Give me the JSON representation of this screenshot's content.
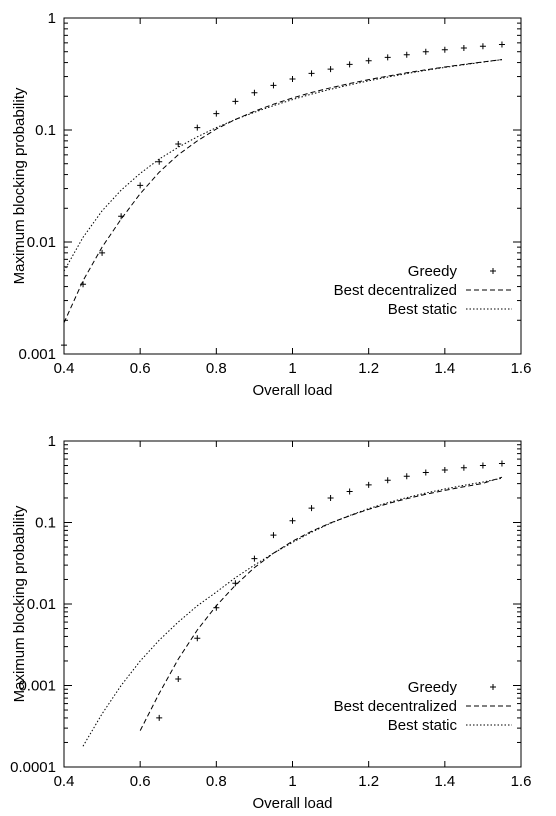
{
  "chart_data": [
    {
      "type": "scatter",
      "xlabel": "Overall load",
      "ylabel": "Maximum blocking probability",
      "xlim": [
        0.4,
        1.6
      ],
      "ylim": [
        0.001,
        1
      ],
      "yscale": "log",
      "grid": false,
      "legend_position": "bottom-right",
      "xticks": [
        "0.4",
        "0.6",
        "0.8",
        "1",
        "1.2",
        "1.4",
        "1.6"
      ],
      "yticks": [
        "0.001",
        "0.01",
        "0.1",
        "1"
      ],
      "series": [
        {
          "name": "Greedy",
          "style": "points",
          "x": [
            0.4,
            0.45,
            0.5,
            0.55,
            0.6,
            0.65,
            0.7,
            0.75,
            0.8,
            0.85,
            0.9,
            0.95,
            1.0,
            1.05,
            1.1,
            1.15,
            1.2,
            1.25,
            1.3,
            1.35,
            1.4,
            1.45,
            1.5,
            1.55
          ],
          "y": [
            0.0012,
            0.0042,
            0.008,
            0.017,
            0.032,
            0.052,
            0.075,
            0.105,
            0.14,
            0.18,
            0.215,
            0.25,
            0.285,
            0.32,
            0.35,
            0.385,
            0.415,
            0.445,
            0.47,
            0.5,
            0.52,
            0.54,
            0.56,
            0.58
          ]
        },
        {
          "name": "Best decentralized",
          "style": "dashed",
          "x": [
            0.4,
            0.45,
            0.5,
            0.55,
            0.6,
            0.65,
            0.7,
            0.75,
            0.8,
            0.85,
            0.9,
            0.95,
            1.0,
            1.05,
            1.1,
            1.15,
            1.2,
            1.25,
            1.3,
            1.35,
            1.4,
            1.45,
            1.5,
            1.55
          ],
          "y": [
            0.0019,
            0.0045,
            0.009,
            0.016,
            0.027,
            0.042,
            0.06,
            0.08,
            0.102,
            0.124,
            0.147,
            0.17,
            0.193,
            0.216,
            0.238,
            0.26,
            0.282,
            0.303,
            0.324,
            0.345,
            0.365,
            0.385,
            0.405,
            0.425
          ]
        },
        {
          "name": "Best static",
          "style": "dotted",
          "x": [
            0.4,
            0.45,
            0.5,
            0.55,
            0.6,
            0.65,
            0.7,
            0.75,
            0.8,
            0.85,
            0.9,
            0.95,
            1.0,
            1.05,
            1.1,
            1.15,
            1.2,
            1.25,
            1.3,
            1.35,
            1.4,
            1.45,
            1.5,
            1.55
          ],
          "y": [
            0.0055,
            0.011,
            0.019,
            0.029,
            0.041,
            0.055,
            0.07,
            0.087,
            0.105,
            0.124,
            0.144,
            0.165,
            0.187,
            0.209,
            0.231,
            0.253,
            0.275,
            0.297,
            0.319,
            0.341,
            0.362,
            0.383,
            0.404,
            0.425
          ]
        }
      ]
    },
    {
      "type": "scatter",
      "xlabel": "Overall load",
      "ylabel": "Maximum blocking probability",
      "xlim": [
        0.4,
        1.6
      ],
      "ylim": [
        0.0001,
        1
      ],
      "yscale": "log",
      "grid": false,
      "legend_position": "bottom-right",
      "xticks": [
        "0.4",
        "0.6",
        "0.8",
        "1",
        "1.2",
        "1.4",
        "1.6"
      ],
      "yticks": [
        "0.0001",
        "0.001",
        "0.01",
        "0.1",
        "1"
      ],
      "series": [
        {
          "name": "Greedy",
          "style": "points",
          "x": [
            0.65,
            0.7,
            0.75,
            0.8,
            0.85,
            0.9,
            0.95,
            1.0,
            1.05,
            1.1,
            1.15,
            1.2,
            1.25,
            1.3,
            1.35,
            1.4,
            1.45,
            1.5,
            1.55
          ],
          "y": [
            0.0004,
            0.0012,
            0.0038,
            0.009,
            0.018,
            0.036,
            0.07,
            0.105,
            0.15,
            0.2,
            0.24,
            0.29,
            0.33,
            0.37,
            0.41,
            0.44,
            0.47,
            0.5,
            0.53
          ]
        },
        {
          "name": "Best decentralized",
          "style": "dashed",
          "x": [
            0.6,
            0.65,
            0.7,
            0.75,
            0.8,
            0.85,
            0.9,
            0.95,
            1.0,
            1.05,
            1.1,
            1.15,
            1.2,
            1.25,
            1.3,
            1.35,
            1.4,
            1.45,
            1.5,
            1.55
          ],
          "y": [
            0.00028,
            0.0008,
            0.0021,
            0.0048,
            0.0095,
            0.017,
            0.028,
            0.042,
            0.059,
            0.078,
            0.099,
            0.121,
            0.145,
            0.17,
            0.196,
            0.222,
            0.248,
            0.275,
            0.302,
            0.36
          ]
        },
        {
          "name": "Best static",
          "style": "dotted",
          "x": [
            0.45,
            0.5,
            0.55,
            0.6,
            0.65,
            0.7,
            0.75,
            0.8,
            0.85,
            0.9,
            0.95,
            1.0,
            1.05,
            1.1,
            1.15,
            1.2,
            1.25,
            1.3,
            1.35,
            1.4,
            1.45,
            1.5,
            1.55
          ],
          "y": [
            0.00018,
            0.00045,
            0.001,
            0.002,
            0.0036,
            0.006,
            0.0095,
            0.014,
            0.021,
            0.03,
            0.042,
            0.057,
            0.076,
            0.098,
            0.122,
            0.148,
            0.175,
            0.202,
            0.23,
            0.258,
            0.286,
            0.314,
            0.35
          ]
        }
      ]
    }
  ]
}
